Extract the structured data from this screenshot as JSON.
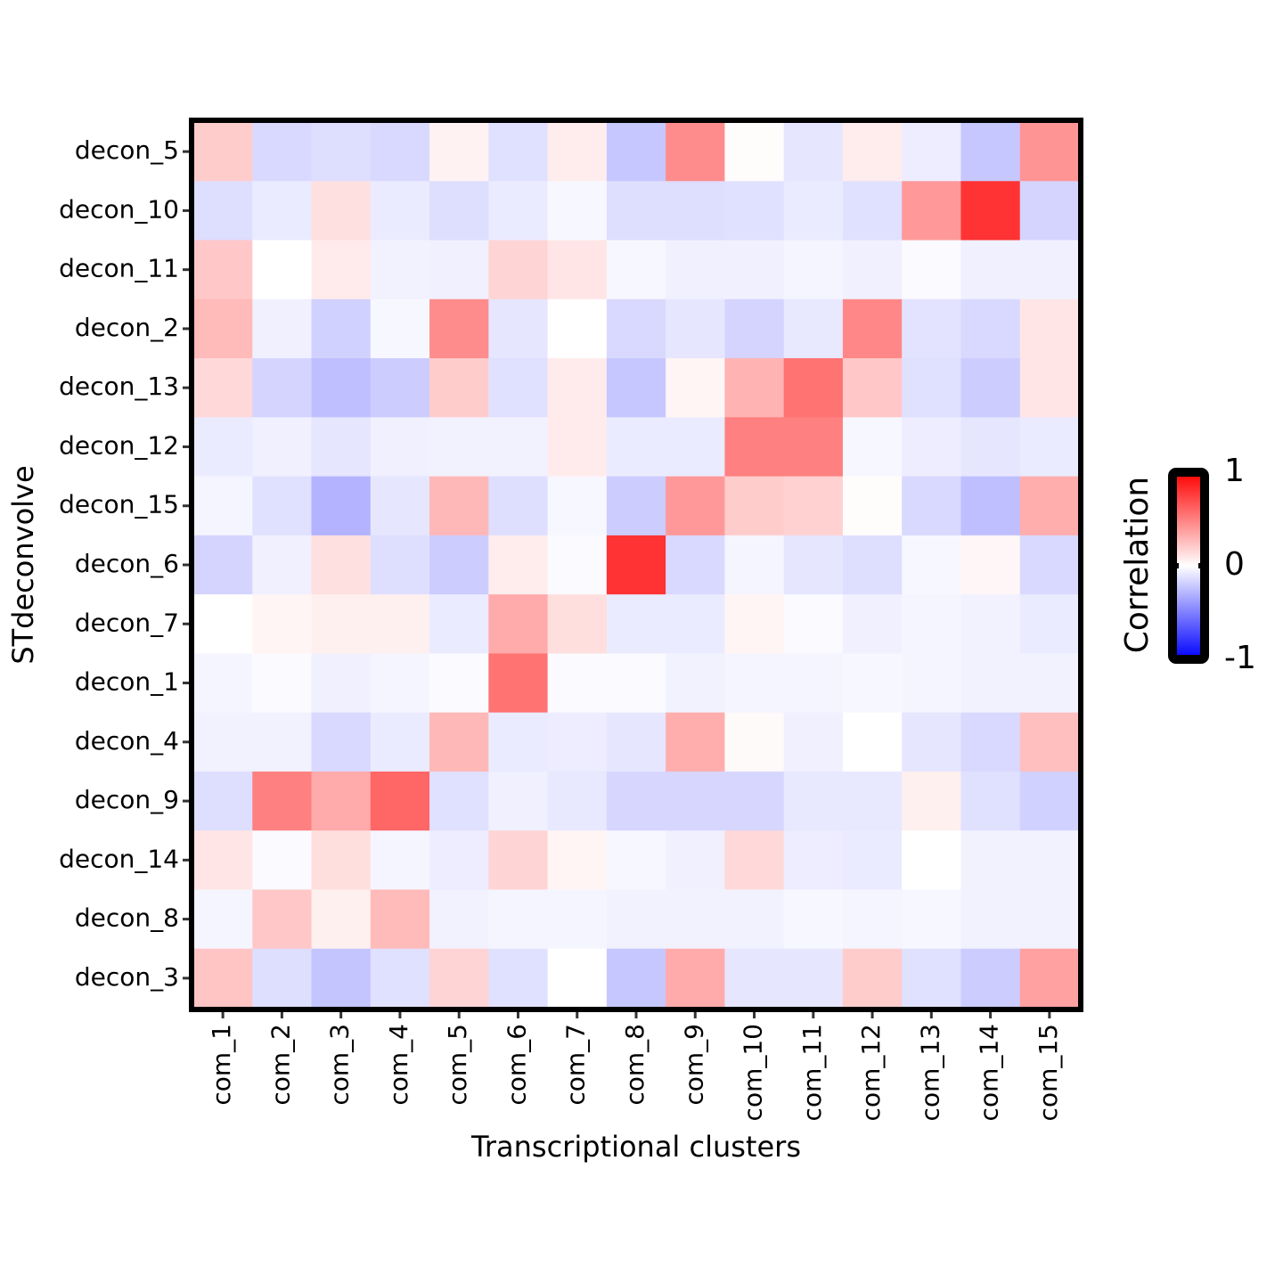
{
  "chart_data": {
    "type": "heatmap",
    "x_label": "Transcriptional clusters",
    "y_label": "STdeconvolve",
    "legend_title": "Correlation",
    "x_categories": [
      "com_1",
      "com_2",
      "com_3",
      "com_4",
      "com_5",
      "com_6",
      "com_7",
      "com_8",
      "com_9",
      "com_10",
      "com_11",
      "com_12",
      "com_13",
      "com_14",
      "com_15"
    ],
    "y_categories": [
      "decon_5",
      "decon_10",
      "decon_11",
      "decon_2",
      "decon_13",
      "decon_12",
      "decon_15",
      "decon_6",
      "decon_7",
      "decon_1",
      "decon_4",
      "decon_9",
      "decon_14",
      "decon_8",
      "decon_3"
    ],
    "values": [
      [
        0.2,
        -0.15,
        -0.13,
        -0.15,
        0.05,
        -0.12,
        0.07,
        -0.22,
        0.45,
        0.01,
        -0.1,
        0.07,
        -0.07,
        -0.22,
        0.42
      ],
      [
        -0.13,
        -0.08,
        0.12,
        -0.08,
        -0.13,
        -0.08,
        -0.03,
        -0.13,
        -0.13,
        -0.12,
        -0.08,
        -0.12,
        0.4,
        0.8,
        -0.17
      ],
      [
        0.22,
        0,
        0.08,
        -0.05,
        -0.06,
        0.17,
        0.1,
        -0.03,
        -0.06,
        -0.06,
        -0.04,
        -0.06,
        -0.02,
        -0.06,
        -0.06
      ],
      [
        0.27,
        -0.06,
        -0.18,
        -0.03,
        0.45,
        -0.1,
        0,
        -0.15,
        -0.1,
        -0.17,
        -0.09,
        0.47,
        -0.11,
        -0.15,
        0.1
      ],
      [
        0.15,
        -0.17,
        -0.25,
        -0.2,
        0.2,
        -0.12,
        0.08,
        -0.22,
        0.04,
        0.3,
        0.55,
        0.22,
        -0.12,
        -0.2,
        0.1
      ],
      [
        -0.08,
        -0.06,
        -0.1,
        -0.06,
        -0.05,
        -0.05,
        0.08,
        -0.08,
        -0.08,
        0.5,
        0.5,
        -0.03,
        -0.07,
        -0.1,
        -0.08
      ],
      [
        -0.04,
        -0.12,
        -0.3,
        -0.1,
        0.28,
        -0.13,
        -0.03,
        -0.2,
        0.4,
        0.2,
        0.18,
        0.01,
        -0.15,
        -0.25,
        0.32
      ],
      [
        -0.17,
        -0.06,
        0.12,
        -0.13,
        -0.2,
        0.07,
        -0.02,
        0.8,
        -0.15,
        -0.04,
        -0.1,
        -0.13,
        -0.03,
        0.03,
        -0.15
      ],
      [
        0,
        0.04,
        0.06,
        0.06,
        -0.08,
        0.33,
        0.13,
        -0.08,
        -0.08,
        0.04,
        -0.02,
        -0.06,
        -0.04,
        -0.05,
        -0.08
      ],
      [
        -0.04,
        -0.02,
        -0.06,
        -0.04,
        -0.02,
        0.55,
        -0.02,
        -0.02,
        -0.05,
        -0.04,
        -0.04,
        -0.03,
        -0.04,
        -0.05,
        -0.05
      ],
      [
        -0.05,
        -0.05,
        -0.15,
        -0.08,
        0.28,
        -0.08,
        -0.07,
        -0.1,
        0.32,
        0.02,
        -0.06,
        0,
        -0.1,
        -0.15,
        0.25
      ],
      [
        -0.13,
        0.5,
        0.33,
        0.6,
        -0.12,
        -0.06,
        -0.09,
        -0.16,
        -0.16,
        -0.16,
        -0.09,
        -0.09,
        0.06,
        -0.12,
        -0.18
      ],
      [
        0.1,
        -0.02,
        0.13,
        -0.04,
        -0.07,
        0.17,
        0.04,
        -0.03,
        -0.06,
        0.15,
        -0.07,
        -0.08,
        0,
        -0.05,
        -0.05
      ],
      [
        -0.04,
        0.22,
        0.06,
        0.27,
        -0.05,
        -0.04,
        -0.04,
        -0.05,
        -0.05,
        -0.05,
        -0.03,
        -0.04,
        -0.03,
        -0.05,
        -0.05
      ],
      [
        0.23,
        -0.13,
        -0.23,
        -0.12,
        0.17,
        -0.12,
        0,
        -0.22,
        0.33,
        -0.1,
        -0.1,
        0.2,
        -0.12,
        -0.2,
        0.37
      ]
    ],
    "color_low": "#0000ff",
    "color_mid": "#ffffff",
    "color_high": "#ff0000",
    "zlim": [
      -1,
      1
    ],
    "zticks": [
      -1,
      0,
      1
    ]
  }
}
